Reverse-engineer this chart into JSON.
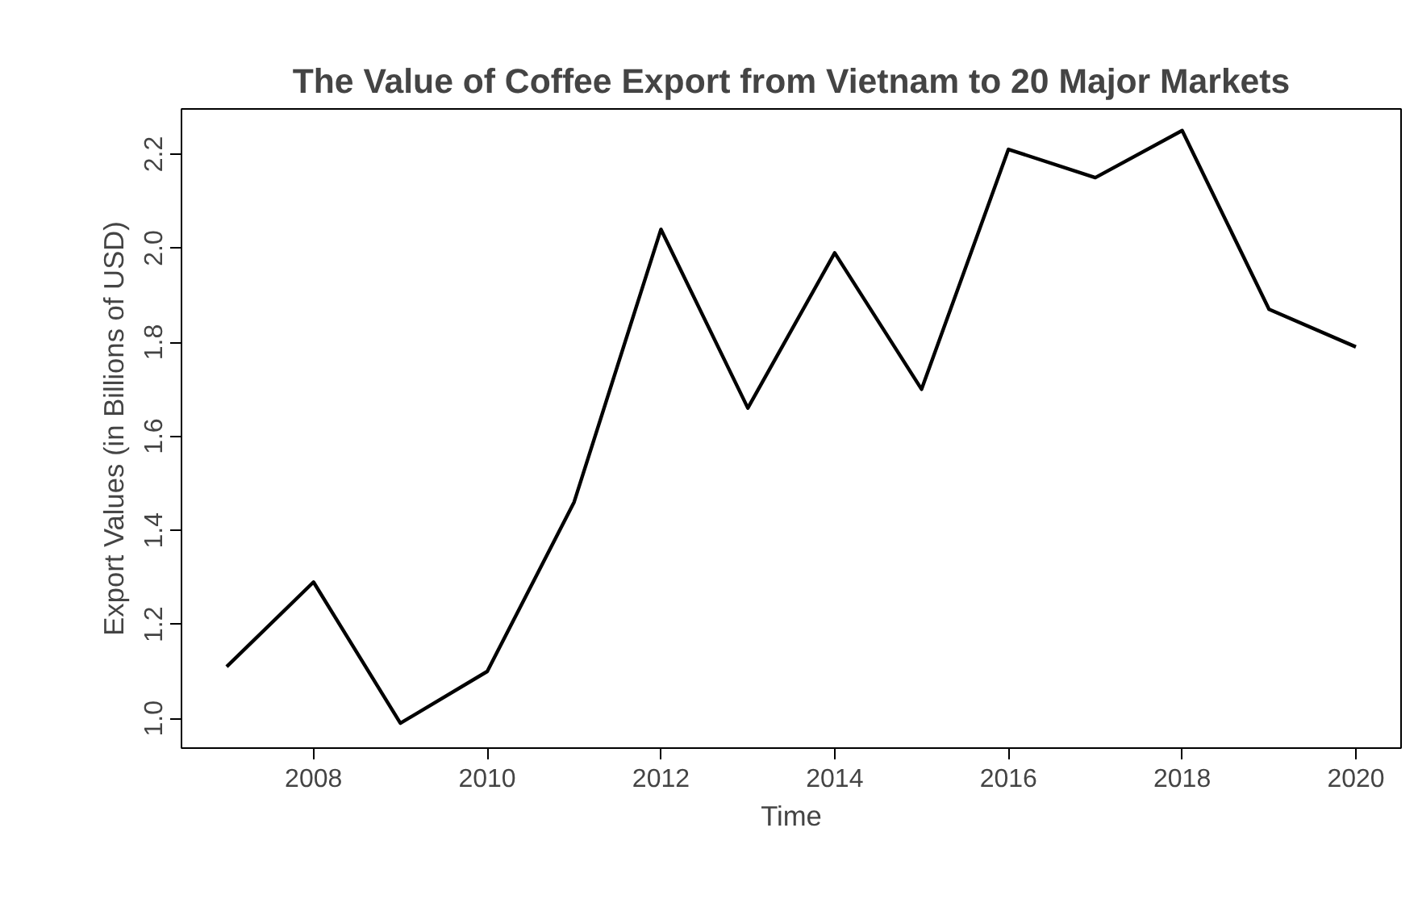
{
  "chart_data": {
    "type": "line",
    "title": "The Value of Coffee Export from Vietnam to 20 Major Markets",
    "xlabel": "Time",
    "ylabel": "Export Values (in Billions of USD)",
    "x": [
      2007,
      2008,
      2009,
      2010,
      2011,
      2012,
      2013,
      2014,
      2015,
      2016,
      2017,
      2018,
      2019,
      2020
    ],
    "series": [
      {
        "color": "#000000",
        "values": [
          1.11,
          1.29,
          0.99,
          1.1,
          1.46,
          2.04,
          1.66,
          1.99,
          1.7,
          2.21,
          2.15,
          2.25,
          1.87,
          1.79
        ]
      }
    ],
    "xlim": [
      2006.48,
      2020.52
    ],
    "ylim": [
      0.937,
      2.296
    ],
    "xticks": [
      2008,
      2010,
      2012,
      2014,
      2016,
      2018,
      2020
    ],
    "yticks": [
      {
        "value": 1,
        "label": "1.0"
      },
      1.2,
      1.4,
      1.6,
      1.8,
      {
        "value": 2,
        "label": "2.0"
      },
      2.2
    ],
    "line_style": "solid"
  }
}
